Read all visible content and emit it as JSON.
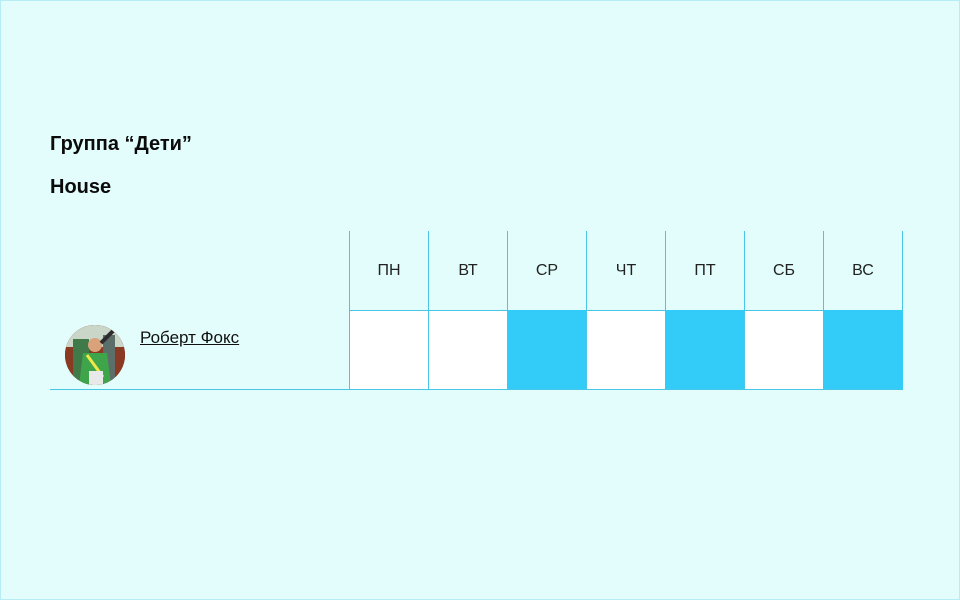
{
  "group": {
    "title": "Группа “Дети”",
    "hall": "House"
  },
  "schedule": {
    "days": [
      "ПН",
      "ВТ",
      "СР",
      "ЧТ",
      "ПТ",
      "СБ",
      "ВС"
    ],
    "rows": [
      {
        "trainer_name": "Роберт Фокс",
        "avatar_icon": "avatar-photo",
        "busy": [
          false,
          false,
          true,
          false,
          true,
          false,
          true
        ]
      }
    ]
  },
  "colors": {
    "background": "#e2fdfb",
    "accent": "#33ccf8",
    "grid_line": "#47c6e8"
  }
}
